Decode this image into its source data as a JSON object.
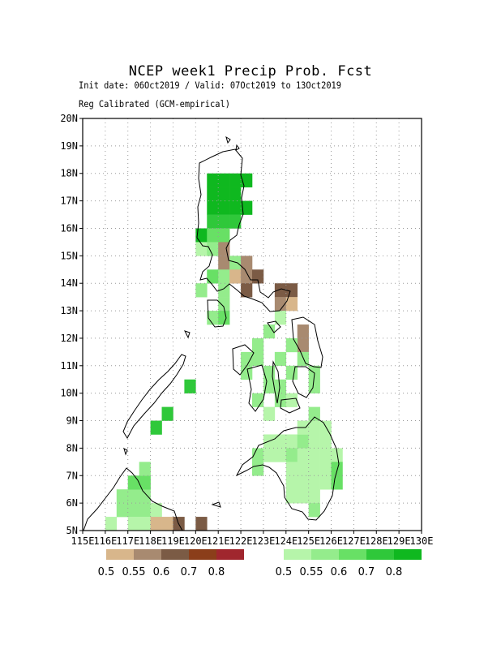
{
  "title": "NCEP week1 Precip Prob. Fcst",
  "subtitle": "Init date: 06Oct2019 / Valid: 07Oct2019 to 13Oct2019",
  "subtitle2": "Reg Calibrated (GCM-empirical)",
  "map_data": {
    "lon_range": [
      115,
      130
    ],
    "lat_range": [
      5,
      20
    ],
    "lon_tick_labels": [
      "115E",
      "116E",
      "117E",
      "118E",
      "119E",
      "120E",
      "121E",
      "122E",
      "123E",
      "124E",
      "125E",
      "126E",
      "127E",
      "128E",
      "129E",
      "130E"
    ],
    "lat_tick_labels": [
      "5N",
      "6N",
      "7N",
      "8N",
      "9N",
      "10N",
      "11N",
      "12N",
      "13N",
      "14N",
      "15N",
      "16N",
      "17N",
      "18N",
      "19N",
      "20N"
    ],
    "grid": "dotted",
    "dry_legend": {
      "labels": [
        "0.5",
        "0.55",
        "0.6",
        "0.7",
        "0.8"
      ],
      "colors": [
        "#d8b68b",
        "#a88a70",
        "#7b5b45",
        "#8b3e1a",
        "#a0262e"
      ]
    },
    "wet_legend": {
      "labels": [
        "0.5",
        "0.55",
        "0.6",
        "0.7",
        "0.8"
      ],
      "colors": [
        "#b6f5aa",
        "#94ec8c",
        "#68e065",
        "#2fc83a",
        "#0fb81f"
      ]
    },
    "cells": [
      {
        "lon": 116,
        "lat": 5,
        "cls": "W1"
      },
      {
        "lon": 116.5,
        "lat": 5.5,
        "cls": "W2"
      },
      {
        "lon": 117,
        "lat": 5.5,
        "cls": "W2"
      },
      {
        "lon": 117.5,
        "lat": 5.5,
        "cls": "W2"
      },
      {
        "lon": 116.5,
        "lat": 6,
        "cls": "W2"
      },
      {
        "lon": 117,
        "lat": 6,
        "cls": "W2"
      },
      {
        "lon": 117.5,
        "lat": 6,
        "cls": "W2"
      },
      {
        "lon": 117,
        "lat": 6.5,
        "cls": "W3"
      },
      {
        "lon": 117.5,
        "lat": 6.5,
        "cls": "W3"
      },
      {
        "lon": 117.5,
        "lat": 7,
        "cls": "W2"
      },
      {
        "lon": 117,
        "lat": 5,
        "cls": "W1"
      },
      {
        "lon": 117.5,
        "lat": 5,
        "cls": "W1"
      },
      {
        "lon": 118,
        "lat": 5.5,
        "cls": "W1"
      },
      {
        "lon": 118,
        "lat": 5,
        "cls": "D1"
      },
      {
        "lon": 118.5,
        "lat": 5,
        "cls": "D1"
      },
      {
        "lon": 119,
        "lat": 5,
        "cls": "D3"
      },
      {
        "lon": 120,
        "lat": 5,
        "cls": "D3"
      },
      {
        "lon": 118,
        "lat": 8.5,
        "cls": "W4"
      },
      {
        "lon": 118.5,
        "lat": 9,
        "cls": "W4"
      },
      {
        "lon": 119.5,
        "lat": 10,
        "cls": "W4"
      },
      {
        "lon": 120.5,
        "lat": 17.5,
        "cls": "W5"
      },
      {
        "lon": 121,
        "lat": 17.5,
        "cls": "W5"
      },
      {
        "lon": 121.5,
        "lat": 17.5,
        "cls": "W5"
      },
      {
        "lon": 122,
        "lat": 17.5,
        "cls": "W5"
      },
      {
        "lon": 120.5,
        "lat": 17,
        "cls": "W5"
      },
      {
        "lon": 121,
        "lat": 17,
        "cls": "W5"
      },
      {
        "lon": 121.5,
        "lat": 17,
        "cls": "W5"
      },
      {
        "lon": 120.5,
        "lat": 16.5,
        "cls": "W5"
      },
      {
        "lon": 121,
        "lat": 16.5,
        "cls": "W5"
      },
      {
        "lon": 121.5,
        "lat": 16.5,
        "cls": "W5"
      },
      {
        "lon": 122,
        "lat": 16.5,
        "cls": "W5"
      },
      {
        "lon": 120.5,
        "lat": 16,
        "cls": "W4"
      },
      {
        "lon": 121,
        "lat": 16,
        "cls": "W4"
      },
      {
        "lon": 121.5,
        "lat": 16,
        "cls": "W4"
      },
      {
        "lon": 120,
        "lat": 15.5,
        "cls": "W5"
      },
      {
        "lon": 120.5,
        "lat": 15.5,
        "cls": "W3"
      },
      {
        "lon": 121,
        "lat": 15.5,
        "cls": "W3"
      },
      {
        "lon": 120,
        "lat": 15,
        "cls": "W1"
      },
      {
        "lon": 120.5,
        "lat": 15,
        "cls": "W2"
      },
      {
        "lon": 121,
        "lat": 15,
        "cls": "D2"
      },
      {
        "lon": 121,
        "lat": 14.5,
        "cls": "D2"
      },
      {
        "lon": 121.5,
        "lat": 14.5,
        "cls": "W2"
      },
      {
        "lon": 122,
        "lat": 14.5,
        "cls": "D2"
      },
      {
        "lon": 120.5,
        "lat": 14,
        "cls": "W3"
      },
      {
        "lon": 121,
        "lat": 14,
        "cls": "W2"
      },
      {
        "lon": 121.5,
        "lat": 14,
        "cls": "D1"
      },
      {
        "lon": 122,
        "lat": 14,
        "cls": "D2"
      },
      {
        "lon": 122.5,
        "lat": 14,
        "cls": "D3"
      },
      {
        "lon": 120,
        "lat": 13.5,
        "cls": "W2"
      },
      {
        "lon": 121,
        "lat": 13.5,
        "cls": "W2"
      },
      {
        "lon": 122,
        "lat": 13.5,
        "cls": "D3"
      },
      {
        "lon": 121,
        "lat": 13,
        "cls": "W2"
      },
      {
        "lon": 120.5,
        "lat": 12.5,
        "cls": "W2"
      },
      {
        "lon": 121,
        "lat": 12.5,
        "cls": "W3"
      },
      {
        "lon": 123.5,
        "lat": 13.5,
        "cls": "D3"
      },
      {
        "lon": 124,
        "lat": 13.5,
        "cls": "D3"
      },
      {
        "lon": 123.5,
        "lat": 13,
        "cls": "D2"
      },
      {
        "lon": 124,
        "lat": 13,
        "cls": "D1"
      },
      {
        "lon": 123.5,
        "lat": 12.5,
        "cls": "W1"
      },
      {
        "lon": 123,
        "lat": 12,
        "cls": "W2"
      },
      {
        "lon": 124.5,
        "lat": 12,
        "cls": "D2"
      },
      {
        "lon": 124.5,
        "lat": 11.5,
        "cls": "D2"
      },
      {
        "lon": 124,
        "lat": 11.5,
        "cls": "W2"
      },
      {
        "lon": 124.5,
        "lat": 11,
        "cls": "W2"
      },
      {
        "lon": 122.5,
        "lat": 11.5,
        "cls": "W2"
      },
      {
        "lon": 122,
        "lat": 11,
        "cls": "W2"
      },
      {
        "lon": 122.5,
        "lat": 11,
        "cls": "W2"
      },
      {
        "lon": 123.5,
        "lat": 11,
        "cls": "W2"
      },
      {
        "lon": 122,
        "lat": 10.5,
        "cls": "W2"
      },
      {
        "lon": 123,
        "lat": 10.5,
        "cls": "W2"
      },
      {
        "lon": 124,
        "lat": 10.5,
        "cls": "W2"
      },
      {
        "lon": 125,
        "lat": 10.5,
        "cls": "W2"
      },
      {
        "lon": 123,
        "lat": 10,
        "cls": "W2"
      },
      {
        "lon": 123.5,
        "lat": 10,
        "cls": "W2"
      },
      {
        "lon": 125,
        "lat": 10,
        "cls": "W2"
      },
      {
        "lon": 122.5,
        "lat": 9.5,
        "cls": "W2"
      },
      {
        "lon": 123.5,
        "lat": 9.5,
        "cls": "W2"
      },
      {
        "lon": 124,
        "lat": 9.5,
        "cls": "W1"
      },
      {
        "lon": 123,
        "lat": 9,
        "cls": "W1"
      },
      {
        "lon": 125,
        "lat": 9,
        "cls": "W2"
      },
      {
        "lon": 123,
        "lat": 8,
        "cls": "W1"
      },
      {
        "lon": 123.5,
        "lat": 8,
        "cls": "W1"
      },
      {
        "lon": 124,
        "lat": 8,
        "cls": "W1"
      },
      {
        "lon": 124.5,
        "lat": 8,
        "cls": "W2"
      },
      {
        "lon": 125,
        "lat": 8,
        "cls": "W1"
      },
      {
        "lon": 125.5,
        "lat": 8,
        "cls": "W1"
      },
      {
        "lon": 124.5,
        "lat": 8.5,
        "cls": "W1"
      },
      {
        "lon": 125,
        "lat": 8.5,
        "cls": "W1"
      },
      {
        "lon": 125.5,
        "lat": 8.5,
        "cls": "W1"
      },
      {
        "lon": 122.5,
        "lat": 7.5,
        "cls": "W2"
      },
      {
        "lon": 123,
        "lat": 7.5,
        "cls": "W1"
      },
      {
        "lon": 123.5,
        "lat": 7.5,
        "cls": "W1"
      },
      {
        "lon": 124,
        "lat": 7.5,
        "cls": "W2"
      },
      {
        "lon": 124.5,
        "lat": 7.5,
        "cls": "W1"
      },
      {
        "lon": 125,
        "lat": 7.5,
        "cls": "W1"
      },
      {
        "lon": 125.5,
        "lat": 7.5,
        "cls": "W1"
      },
      {
        "lon": 126,
        "lat": 7.5,
        "cls": "W1"
      },
      {
        "lon": 122.5,
        "lat": 7,
        "cls": "W2"
      },
      {
        "lon": 124,
        "lat": 7,
        "cls": "W1"
      },
      {
        "lon": 124.5,
        "lat": 7,
        "cls": "W1"
      },
      {
        "lon": 125,
        "lat": 7,
        "cls": "W1"
      },
      {
        "lon": 125.5,
        "lat": 7,
        "cls": "W1"
      },
      {
        "lon": 126,
        "lat": 7,
        "cls": "W3"
      },
      {
        "lon": 124,
        "lat": 6.5,
        "cls": "W1"
      },
      {
        "lon": 124.5,
        "lat": 6.5,
        "cls": "W1"
      },
      {
        "lon": 125,
        "lat": 6.5,
        "cls": "W1"
      },
      {
        "lon": 125.5,
        "lat": 6.5,
        "cls": "W1"
      },
      {
        "lon": 126,
        "lat": 6.5,
        "cls": "W3"
      },
      {
        "lon": 124,
        "lat": 6,
        "cls": "W1"
      },
      {
        "lon": 124.5,
        "lat": 6,
        "cls": "W1"
      },
      {
        "lon": 125,
        "lat": 6,
        "cls": "W1"
      },
      {
        "lon": 125,
        "lat": 5.5,
        "cls": "W2"
      }
    ]
  }
}
